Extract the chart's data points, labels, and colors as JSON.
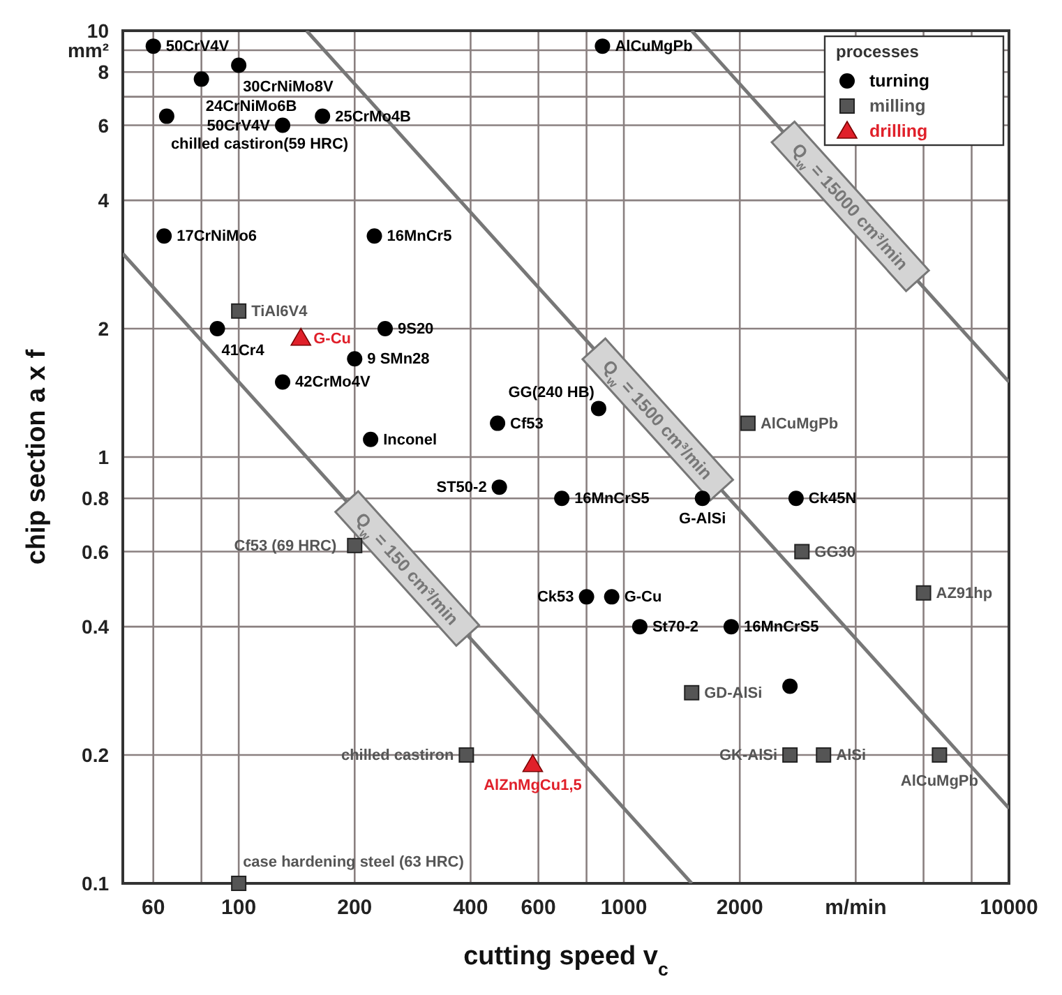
{
  "chart_data": {
    "type": "scatter",
    "xlabel": "cutting speed v$_{c}$",
    "ylabel": "chip section a x f",
    "legend_title": "processes",
    "legend": "top right",
    "grid": true,
    "log": "xy",
    "xlim": [
      50,
      10000
    ],
    "ylim": [
      0.1,
      10
    ],
    "xticks": [
      60,
      {
        "value": 80,
        "label": null
      },
      100,
      200,
      400,
      600,
      {
        "value": 800,
        "label": null
      },
      1000,
      2000,
      {
        "value": 4000,
        "label": "m/min"
      },
      {
        "value": 6000,
        "label": null
      },
      {
        "value": 8000,
        "label": null
      },
      10000
    ],
    "yticks": [
      0.1,
      0.2,
      0.4,
      0.6,
      0.8,
      1,
      2,
      4,
      6,
      {
        "value": 7,
        "label": null
      },
      8,
      {
        "value": 9,
        "label": "mm²"
      },
      10
    ],
    "series": [
      {
        "name": "turning",
        "marker": "circle",
        "color": "#000000",
        "x": [
          60,
          100,
          80,
          65,
          130,
          165,
          64,
          225,
          88,
          240,
          200,
          130,
          220,
          470,
          475,
          860,
          690,
          1600,
          2800,
          800,
          930,
          1100,
          1900,
          2700,
          880
        ],
        "values": [
          9.2,
          8.3,
          7.7,
          6.3,
          6,
          6.3,
          3.3,
          3.3,
          2,
          2,
          1.7,
          1.5,
          1.1,
          1.2,
          0.85,
          1.3,
          0.8,
          0.8,
          0.8,
          0.47,
          0.47,
          0.4,
          0.4,
          0.29,
          9.2
        ]
      },
      {
        "name": "milling",
        "marker": "square",
        "color": "#555555",
        "x": [
          100,
          200,
          390,
          100,
          2100,
          2900,
          6000,
          1500,
          2700,
          3300,
          6600
        ],
        "values": [
          2.2,
          0.62,
          0.2,
          0.1,
          1.2,
          0.6,
          0.48,
          0.28,
          0.2,
          0.2,
          0.2
        ]
      },
      {
        "name": "drilling",
        "marker": "triangle",
        "color": "#e0202a",
        "x": [
          145,
          580
        ],
        "values": [
          1.9,
          0.19
        ]
      },
      {
        "name": "Q$_{w}$ = 150 cm³/min",
        "type": "line",
        "line_style": "solid",
        "color": "#777777",
        "x": [
          50,
          1500
        ],
        "values": [
          3,
          0.1
        ]
      },
      {
        "name": "Q$_{w}$ = 1500 cm³/min",
        "type": "line",
        "line_style": "solid",
        "color": "#777777",
        "x": [
          150,
          10000
        ],
        "values": [
          10,
          0.15
        ]
      },
      {
        "name": "Q$_{w}$ = 15000 cm³/min",
        "type": "line",
        "line_style": "solid",
        "color": "#777777",
        "x": [
          1500,
          10000
        ],
        "values": [
          10,
          1.5
        ]
      }
    ],
    "annotations": [
      {
        "text": "50CrV4V",
        "x": 60,
        "y": 9.2
      },
      {
        "text": "30CrNiMo8V",
        "x": 100,
        "y": 8.3
      },
      {
        "text": "24CrNiMo6B",
        "x": 80,
        "y": 7.7
      },
      {
        "text": "chilled castiron(59 HRC)",
        "x": 65,
        "y": 6.3
      },
      {
        "text": "50CrV4V",
        "x": 130,
        "y": 6
      },
      {
        "text": "25CrMo4B",
        "x": 165,
        "y": 6.3
      },
      {
        "text": "17CrNiMo6",
        "x": 64,
        "y": 3.3
      },
      {
        "text": "16MnCr5",
        "x": 225,
        "y": 3.3
      },
      {
        "text": "41Cr4",
        "x": 88,
        "y": 2
      },
      {
        "text": "9S20",
        "x": 240,
        "y": 2
      },
      {
        "text": "9 SMn28",
        "x": 200,
        "y": 1.7
      },
      {
        "text": "42CrMo4V",
        "x": 130,
        "y": 1.5
      },
      {
        "text": "Inconel",
        "x": 220,
        "y": 1.1
      },
      {
        "text": "Cf53",
        "x": 470,
        "y": 1.2
      },
      {
        "text": "ST50-2",
        "x": 475,
        "y": 0.85
      },
      {
        "text": "GG(240 HB)",
        "x": 860,
        "y": 1.3
      },
      {
        "text": "16MnCrS5",
        "x": 690,
        "y": 0.8
      },
      {
        "text": "G-AlSi",
        "x": 1600,
        "y": 0.8
      },
      {
        "text": "Ck45N",
        "x": 2800,
        "y": 0.8
      },
      {
        "text": "Ck53",
        "x": 800,
        "y": 0.47
      },
      {
        "text": "G-Cu",
        "x": 930,
        "y": 0.47
      },
      {
        "text": "St70-2",
        "x": 1100,
        "y": 0.4
      },
      {
        "text": "16MnCrS5",
        "x": 1900,
        "y": 0.4
      },
      {
        "text": "AlCuMgPb",
        "x": 880,
        "y": 9.2
      },
      {
        "text": "TiAl6V4",
        "x": 100,
        "y": 2.2
      },
      {
        "text": "Cf53 (69 HRC)",
        "x": 200,
        "y": 0.62
      },
      {
        "text": "chilled castiron",
        "x": 390,
        "y": 0.2
      },
      {
        "text": "case hardening steel (63 HRC)",
        "x": 100,
        "y": 0.1
      },
      {
        "text": "AlCuMgPb",
        "x": 2100,
        "y": 1.2
      },
      {
        "text": "GG30",
        "x": 2900,
        "y": 0.6
      },
      {
        "text": "AZ91hp",
        "x": 6000,
        "y": 0.48
      },
      {
        "text": "GD-AlSi",
        "x": 1500,
        "y": 0.28
      },
      {
        "text": "GK-AlSi",
        "x": 2700,
        "y": 0.2
      },
      {
        "text": "AlSi",
        "x": 3300,
        "y": 0.2
      },
      {
        "text": "AlCuMgPb",
        "x": 6600,
        "y": 0.2
      },
      {
        "text": "G-Cu",
        "x": 145,
        "y": 1.9
      },
      {
        "text": "AlZnMgCu1,5",
        "x": 580,
        "y": 0.19
      }
    ]
  }
}
